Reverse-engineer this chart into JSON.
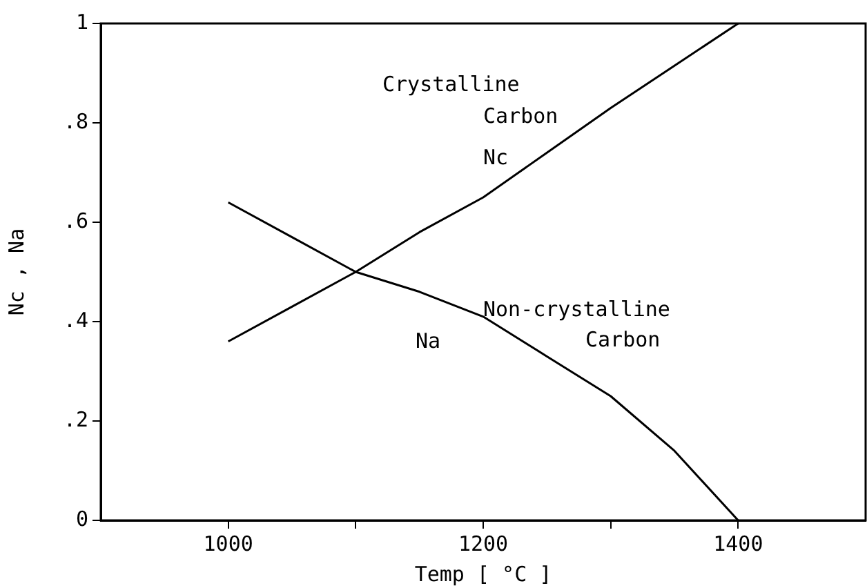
{
  "chart_data": {
    "type": "line",
    "xlabel": "Temp [ °C ]",
    "ylabel": "Nc , Na",
    "xlim": [
      900,
      1500
    ],
    "xticks": [
      1000,
      {
        "value": 1100,
        "label": null
      },
      1200,
      {
        "value": 1300,
        "label": null
      },
      1400
    ],
    "ylim": [
      0,
      1
    ],
    "yticks": [
      0,
      {
        "value": 0.2,
        "label": ".2"
      },
      {
        "value": 0.4,
        "label": ".4"
      },
      {
        "value": 0.6,
        "label": ".6"
      },
      {
        "value": 0.8,
        "label": ".8"
      },
      1
    ],
    "grid": false,
    "legend": false,
    "marker": "none",
    "line_style": "solid",
    "series": [
      {
        "name": "Nc",
        "color": "#000000",
        "x": [
          1000,
          1050,
          1100,
          1150,
          1200,
          1250,
          1300,
          1350,
          1400
        ],
        "values": [
          0.36,
          0.43,
          0.5,
          0.58,
          0.65,
          0.74,
          0.83,
          0.915,
          1.0
        ]
      },
      {
        "name": "Na",
        "color": "#000000",
        "x": [
          1000,
          1050,
          1100,
          1150,
          1200,
          1250,
          1300,
          1350,
          1400
        ],
        "values": [
          0.64,
          0.57,
          0.5,
          0.46,
          0.41,
          0.33,
          0.25,
          0.14,
          0
        ]
      }
    ],
    "annotations": [
      "Crystalline Carbon",
      "Non-crystalline Carbon"
    ]
  }
}
